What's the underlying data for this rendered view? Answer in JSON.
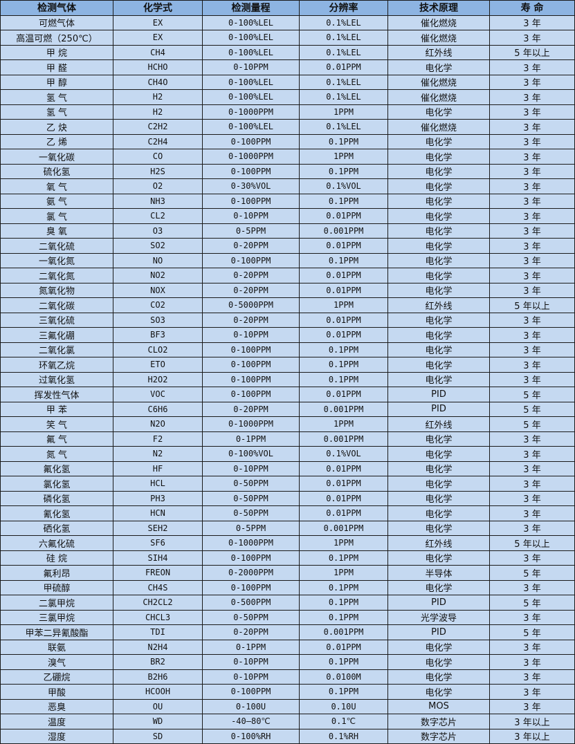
{
  "headers": [
    "检测气体",
    "化学式",
    "检测量程",
    "分辨率",
    "技术原理",
    "寿 命"
  ],
  "colors": {
    "header_bg": "#8db4e2",
    "row_bg": "#c5d9f1",
    "border": "#1a1a1a"
  },
  "rows": [
    [
      "可燃气体",
      "EX",
      "0-100%LEL",
      "0.1%LEL",
      "催化燃烧",
      "3 年"
    ],
    [
      "高温可燃（250℃）",
      "EX",
      "0-100%LEL",
      "0.1%LEL",
      "催化燃烧",
      "3 年"
    ],
    [
      "甲 烷",
      "CH4",
      "0-100%LEL",
      "0.1%LEL",
      "红外线",
      "5 年以上"
    ],
    [
      "甲 醛",
      "HCHO",
      "0-10PPM",
      "0.01PPM",
      "电化学",
      "3 年"
    ],
    [
      "甲 醇",
      "CH4O",
      "0-100%LEL",
      "0.1%LEL",
      "催化燃烧",
      "3 年"
    ],
    [
      "氢 气",
      "H2",
      "0-100%LEL",
      "0.1%LEL",
      "催化燃烧",
      "3 年"
    ],
    [
      "氢 气",
      "H2",
      "0-1000PPM",
      "1PPM",
      "电化学",
      "3 年"
    ],
    [
      "乙 炔",
      "C2H2",
      "0-100%LEL",
      "0.1%LEL",
      "催化燃烧",
      "3 年"
    ],
    [
      "乙 烯",
      "C2H4",
      "0-100PPM",
      "0.1PPM",
      "电化学",
      "3 年"
    ],
    [
      "一氧化碳",
      "CO",
      "0-1000PPM",
      "1PPM",
      "电化学",
      "3 年"
    ],
    [
      "硫化氢",
      "H2S",
      "0-100PPM",
      "0.1PPM",
      "电化学",
      "3 年"
    ],
    [
      "氧 气",
      "O2",
      "0-30%VOL",
      "0.1%VOL",
      "电化学",
      "3 年"
    ],
    [
      "氨 气",
      "NH3",
      "0-100PPM",
      "0.1PPM",
      "电化学",
      "3 年"
    ],
    [
      "氯 气",
      "CL2",
      "0-10PPM",
      "0.01PPM",
      "电化学",
      "3 年"
    ],
    [
      "臭 氧",
      "O3",
      "0-5PPM",
      "0.001PPM",
      "电化学",
      "3 年"
    ],
    [
      "二氧化硫",
      "SO2",
      "0-20PPM",
      "0.01PPM",
      "电化学",
      "3 年"
    ],
    [
      "一氧化氮",
      "NO",
      "0-100PPM",
      "0.1PPM",
      "电化学",
      "3 年"
    ],
    [
      "二氧化氮",
      "NO2",
      "0-20PPM",
      "0.01PPM",
      "电化学",
      "3 年"
    ],
    [
      "氮氧化物",
      "NOX",
      "0-20PPM",
      "0.01PPM",
      "电化学",
      "3 年"
    ],
    [
      "二氧化碳",
      "CO2",
      "0-5000PPM",
      "1PPM",
      "红外线",
      "5 年以上"
    ],
    [
      "三氧化硫",
      "SO3",
      "0-20PPM",
      "0.01PPM",
      "电化学",
      "3 年"
    ],
    [
      "三氟化硼",
      "BF3",
      "0-10PPM",
      "0.01PPM",
      "电化学",
      "3 年"
    ],
    [
      "二氧化氯",
      "CLO2",
      "0-100PPM",
      "0.1PPM",
      "电化学",
      "3 年"
    ],
    [
      "环氧乙烷",
      "ETO",
      "0-100PPM",
      "0.1PPM",
      "电化学",
      "3 年"
    ],
    [
      "过氧化氢",
      "H2O2",
      "0-100PPM",
      "0.1PPM",
      "电化学",
      "3 年"
    ],
    [
      "挥发性气体",
      "VOC",
      "0-100PPM",
      "0.01PPM",
      "PID",
      "5 年"
    ],
    [
      "甲 苯",
      "C6H6",
      "0-20PPM",
      "0.001PPM",
      "PID",
      "5 年"
    ],
    [
      "笑 气",
      "N2O",
      "0-1000PPM",
      "1PPM",
      "红外线",
      "5 年"
    ],
    [
      "氟 气",
      "F2",
      "0-1PPM",
      "0.001PPM",
      "电化学",
      "3 年"
    ],
    [
      "氮 气",
      "N2",
      "0-100%VOL",
      "0.1%VOL",
      "电化学",
      "3 年"
    ],
    [
      "氟化氢",
      "HF",
      "0-10PPM",
      "0.01PPM",
      "电化学",
      "3 年"
    ],
    [
      "氯化氢",
      "HCL",
      "0-50PPM",
      "0.01PPM",
      "电化学",
      "3 年"
    ],
    [
      "磷化氢",
      "PH3",
      "0-50PPM",
      "0.01PPM",
      "电化学",
      "3 年"
    ],
    [
      "氰化氢",
      "HCN",
      "0-50PPM",
      "0.01PPM",
      "电化学",
      "3 年"
    ],
    [
      "硒化氢",
      "SEH2",
      "0-5PPM",
      "0.001PPM",
      "电化学",
      "3 年"
    ],
    [
      "六氟化硫",
      "SF6",
      "0-1000PPM",
      "1PPM",
      "红外线",
      "5 年以上"
    ],
    [
      "硅 烷",
      "SIH4",
      "0-100PPM",
      "0.1PPM",
      "电化学",
      "3 年"
    ],
    [
      "氟利昂",
      "FREON",
      "0-2000PPM",
      "1PPM",
      "半导体",
      "5 年"
    ],
    [
      "甲硫醇",
      "CH4S",
      "0-100PPM",
      "0.1PPM",
      "电化学",
      "3 年"
    ],
    [
      "二氯甲烷",
      "CH2CL2",
      "0-500PPM",
      "0.1PPM",
      "PID",
      "5 年"
    ],
    [
      "三氯甲烷",
      "CHCL3",
      "0-50PPM",
      "0.1PPM",
      "光学波导",
      "3 年"
    ],
    [
      "甲苯二异氰酸酯",
      "TDI",
      "0-20PPM",
      "0.001PPM",
      "PID",
      "5 年"
    ],
    [
      "联氨",
      "N2H4",
      "0-1PPM",
      "0.01PPM",
      "电化学",
      "3 年"
    ],
    [
      "溴气",
      "BR2",
      "0-10PPM",
      "0.1PPM",
      "电化学",
      "3 年"
    ],
    [
      "乙硼烷",
      "B2H6",
      "0-10PPM",
      "0.0100M",
      "电化学",
      "3 年"
    ],
    [
      "甲酸",
      "HCOOH",
      "0-100PPM",
      "0.1PPM",
      "电化学",
      "3 年"
    ],
    [
      "恶臭",
      "OU",
      "0-100U",
      "0.10U",
      "MOS",
      "3 年"
    ],
    [
      "温度",
      "WD",
      "-40—80℃",
      "0.1℃",
      "数字芯片",
      "3 年以上"
    ],
    [
      "湿度",
      "SD",
      "0-100%RH",
      "0.1%RH",
      "数字芯片",
      "3 年以上"
    ]
  ]
}
